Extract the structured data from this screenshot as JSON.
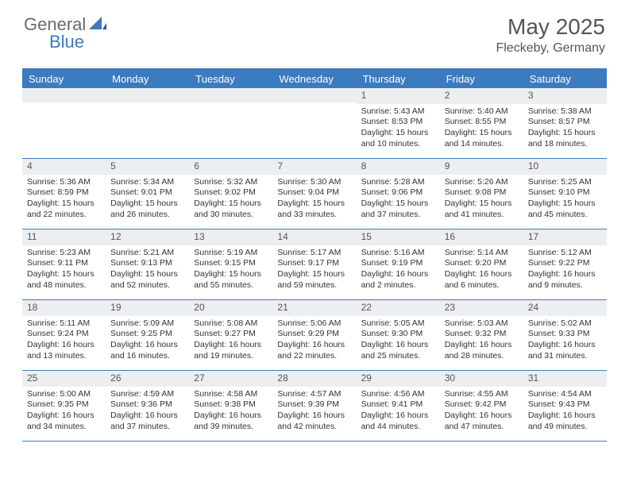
{
  "logo": {
    "general": "General",
    "blue": "Blue"
  },
  "title": "May 2025",
  "location": "Fleckeby, Germany",
  "colors": {
    "accent": "#3b7bbf",
    "header_bg": "#eceff1",
    "text": "#333333",
    "muted": "#555555",
    "logo_gray": "#6a6a6a"
  },
  "day_names": [
    "Sunday",
    "Monday",
    "Tuesday",
    "Wednesday",
    "Thursday",
    "Friday",
    "Saturday"
  ],
  "weeks": [
    [
      null,
      null,
      null,
      null,
      {
        "n": "1",
        "sr": "Sunrise: 5:43 AM",
        "ss": "Sunset: 8:53 PM",
        "d1": "Daylight: 15 hours",
        "d2": "and 10 minutes."
      },
      {
        "n": "2",
        "sr": "Sunrise: 5:40 AM",
        "ss": "Sunset: 8:55 PM",
        "d1": "Daylight: 15 hours",
        "d2": "and 14 minutes."
      },
      {
        "n": "3",
        "sr": "Sunrise: 5:38 AM",
        "ss": "Sunset: 8:57 PM",
        "d1": "Daylight: 15 hours",
        "d2": "and 18 minutes."
      }
    ],
    [
      {
        "n": "4",
        "sr": "Sunrise: 5:36 AM",
        "ss": "Sunset: 8:59 PM",
        "d1": "Daylight: 15 hours",
        "d2": "and 22 minutes."
      },
      {
        "n": "5",
        "sr": "Sunrise: 5:34 AM",
        "ss": "Sunset: 9:01 PM",
        "d1": "Daylight: 15 hours",
        "d2": "and 26 minutes."
      },
      {
        "n": "6",
        "sr": "Sunrise: 5:32 AM",
        "ss": "Sunset: 9:02 PM",
        "d1": "Daylight: 15 hours",
        "d2": "and 30 minutes."
      },
      {
        "n": "7",
        "sr": "Sunrise: 5:30 AM",
        "ss": "Sunset: 9:04 PM",
        "d1": "Daylight: 15 hours",
        "d2": "and 33 minutes."
      },
      {
        "n": "8",
        "sr": "Sunrise: 5:28 AM",
        "ss": "Sunset: 9:06 PM",
        "d1": "Daylight: 15 hours",
        "d2": "and 37 minutes."
      },
      {
        "n": "9",
        "sr": "Sunrise: 5:26 AM",
        "ss": "Sunset: 9:08 PM",
        "d1": "Daylight: 15 hours",
        "d2": "and 41 minutes."
      },
      {
        "n": "10",
        "sr": "Sunrise: 5:25 AM",
        "ss": "Sunset: 9:10 PM",
        "d1": "Daylight: 15 hours",
        "d2": "and 45 minutes."
      }
    ],
    [
      {
        "n": "11",
        "sr": "Sunrise: 5:23 AM",
        "ss": "Sunset: 9:11 PM",
        "d1": "Daylight: 15 hours",
        "d2": "and 48 minutes."
      },
      {
        "n": "12",
        "sr": "Sunrise: 5:21 AM",
        "ss": "Sunset: 9:13 PM",
        "d1": "Daylight: 15 hours",
        "d2": "and 52 minutes."
      },
      {
        "n": "13",
        "sr": "Sunrise: 5:19 AM",
        "ss": "Sunset: 9:15 PM",
        "d1": "Daylight: 15 hours",
        "d2": "and 55 minutes."
      },
      {
        "n": "14",
        "sr": "Sunrise: 5:17 AM",
        "ss": "Sunset: 9:17 PM",
        "d1": "Daylight: 15 hours",
        "d2": "and 59 minutes."
      },
      {
        "n": "15",
        "sr": "Sunrise: 5:16 AM",
        "ss": "Sunset: 9:19 PM",
        "d1": "Daylight: 16 hours",
        "d2": "and 2 minutes."
      },
      {
        "n": "16",
        "sr": "Sunrise: 5:14 AM",
        "ss": "Sunset: 9:20 PM",
        "d1": "Daylight: 16 hours",
        "d2": "and 6 minutes."
      },
      {
        "n": "17",
        "sr": "Sunrise: 5:12 AM",
        "ss": "Sunset: 9:22 PM",
        "d1": "Daylight: 16 hours",
        "d2": "and 9 minutes."
      }
    ],
    [
      {
        "n": "18",
        "sr": "Sunrise: 5:11 AM",
        "ss": "Sunset: 9:24 PM",
        "d1": "Daylight: 16 hours",
        "d2": "and 13 minutes."
      },
      {
        "n": "19",
        "sr": "Sunrise: 5:09 AM",
        "ss": "Sunset: 9:25 PM",
        "d1": "Daylight: 16 hours",
        "d2": "and 16 minutes."
      },
      {
        "n": "20",
        "sr": "Sunrise: 5:08 AM",
        "ss": "Sunset: 9:27 PM",
        "d1": "Daylight: 16 hours",
        "d2": "and 19 minutes."
      },
      {
        "n": "21",
        "sr": "Sunrise: 5:06 AM",
        "ss": "Sunset: 9:29 PM",
        "d1": "Daylight: 16 hours",
        "d2": "and 22 minutes."
      },
      {
        "n": "22",
        "sr": "Sunrise: 5:05 AM",
        "ss": "Sunset: 9:30 PM",
        "d1": "Daylight: 16 hours",
        "d2": "and 25 minutes."
      },
      {
        "n": "23",
        "sr": "Sunrise: 5:03 AM",
        "ss": "Sunset: 9:32 PM",
        "d1": "Daylight: 16 hours",
        "d2": "and 28 minutes."
      },
      {
        "n": "24",
        "sr": "Sunrise: 5:02 AM",
        "ss": "Sunset: 9:33 PM",
        "d1": "Daylight: 16 hours",
        "d2": "and 31 minutes."
      }
    ],
    [
      {
        "n": "25",
        "sr": "Sunrise: 5:00 AM",
        "ss": "Sunset: 9:35 PM",
        "d1": "Daylight: 16 hours",
        "d2": "and 34 minutes."
      },
      {
        "n": "26",
        "sr": "Sunrise: 4:59 AM",
        "ss": "Sunset: 9:36 PM",
        "d1": "Daylight: 16 hours",
        "d2": "and 37 minutes."
      },
      {
        "n": "27",
        "sr": "Sunrise: 4:58 AM",
        "ss": "Sunset: 9:38 PM",
        "d1": "Daylight: 16 hours",
        "d2": "and 39 minutes."
      },
      {
        "n": "28",
        "sr": "Sunrise: 4:57 AM",
        "ss": "Sunset: 9:39 PM",
        "d1": "Daylight: 16 hours",
        "d2": "and 42 minutes."
      },
      {
        "n": "29",
        "sr": "Sunrise: 4:56 AM",
        "ss": "Sunset: 9:41 PM",
        "d1": "Daylight: 16 hours",
        "d2": "and 44 minutes."
      },
      {
        "n": "30",
        "sr": "Sunrise: 4:55 AM",
        "ss": "Sunset: 9:42 PM",
        "d1": "Daylight: 16 hours",
        "d2": "and 47 minutes."
      },
      {
        "n": "31",
        "sr": "Sunrise: 4:54 AM",
        "ss": "Sunset: 9:43 PM",
        "d1": "Daylight: 16 hours",
        "d2": "and 49 minutes."
      }
    ]
  ]
}
